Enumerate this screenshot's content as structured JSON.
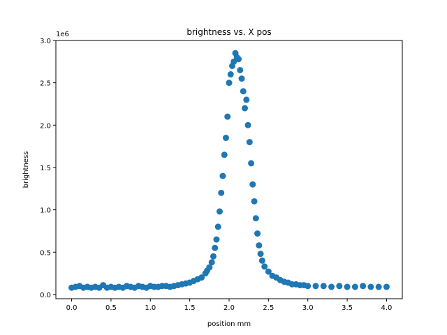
{
  "chart_data": {
    "type": "scatter",
    "title": "brightness vs. X pos",
    "xlabel": "position mm",
    "ylabel": "brightness",
    "y_offset_text": "1e6",
    "xlim": [
      -0.2,
      4.2
    ],
    "ylim": [
      -0.05,
      3.0
    ],
    "x_ticks": [
      0.0,
      0.5,
      1.0,
      1.5,
      2.0,
      2.5,
      3.0,
      3.5,
      4.0
    ],
    "x_tick_labels": [
      "0.0",
      "0.5",
      "1.0",
      "1.5",
      "2.0",
      "2.5",
      "3.0",
      "3.5",
      "4.0"
    ],
    "y_ticks": [
      0.0,
      0.5,
      1.0,
      1.5,
      2.0,
      2.5,
      3.0
    ],
    "y_tick_labels": [
      "0.0",
      "0.5",
      "1.0",
      "1.5",
      "2.0",
      "2.5",
      "3.0"
    ],
    "grid": false,
    "marker_color": "#1f77b4",
    "series": [
      {
        "x": [
          0.0,
          0.05,
          0.1,
          0.15,
          0.2,
          0.25,
          0.3,
          0.35,
          0.4,
          0.45,
          0.5,
          0.55,
          0.6,
          0.65,
          0.7,
          0.75,
          0.8,
          0.85,
          0.9,
          0.95,
          1.0,
          1.05,
          1.1,
          1.15,
          1.2,
          1.25,
          1.3,
          1.35,
          1.4,
          1.45,
          1.5,
          1.55,
          1.6,
          1.65,
          1.7,
          1.72,
          1.75,
          1.78,
          1.8,
          1.82,
          1.84,
          1.86,
          1.88,
          1.9,
          1.92,
          1.94,
          1.96,
          1.98,
          2.0,
          2.02,
          2.04,
          2.06,
          2.08,
          2.1,
          2.12,
          2.14,
          2.16,
          2.18,
          2.2,
          2.22,
          2.24,
          2.26,
          2.28,
          2.3,
          2.32,
          2.34,
          2.36,
          2.38,
          2.4,
          2.42,
          2.45,
          2.5,
          2.55,
          2.6,
          2.65,
          2.7,
          2.75,
          2.8,
          2.85,
          2.9,
          2.95,
          3.0,
          3.1,
          3.2,
          3.3,
          3.4,
          3.5,
          3.6,
          3.7,
          3.8,
          3.9,
          4.0
        ],
        "y": [
          0.08,
          0.09,
          0.1,
          0.08,
          0.09,
          0.08,
          0.09,
          0.08,
          0.11,
          0.08,
          0.09,
          0.08,
          0.09,
          0.08,
          0.1,
          0.09,
          0.08,
          0.1,
          0.09,
          0.08,
          0.1,
          0.09,
          0.09,
          0.1,
          0.1,
          0.09,
          0.1,
          0.11,
          0.12,
          0.13,
          0.14,
          0.16,
          0.18,
          0.2,
          0.25,
          0.28,
          0.32,
          0.38,
          0.45,
          0.55,
          0.65,
          0.8,
          0.98,
          1.2,
          1.4,
          1.65,
          1.85,
          2.1,
          2.5,
          2.6,
          2.7,
          2.75,
          2.85,
          2.8,
          2.78,
          2.65,
          2.55,
          2.4,
          2.2,
          2.3,
          2.0,
          1.8,
          1.55,
          1.3,
          1.1,
          0.9,
          0.72,
          0.58,
          0.48,
          0.4,
          0.33,
          0.27,
          0.22,
          0.2,
          0.17,
          0.15,
          0.14,
          0.12,
          0.12,
          0.11,
          0.11,
          0.1,
          0.1,
          0.1,
          0.09,
          0.1,
          0.09,
          0.09,
          0.1,
          0.09,
          0.09,
          0.09
        ]
      }
    ]
  }
}
